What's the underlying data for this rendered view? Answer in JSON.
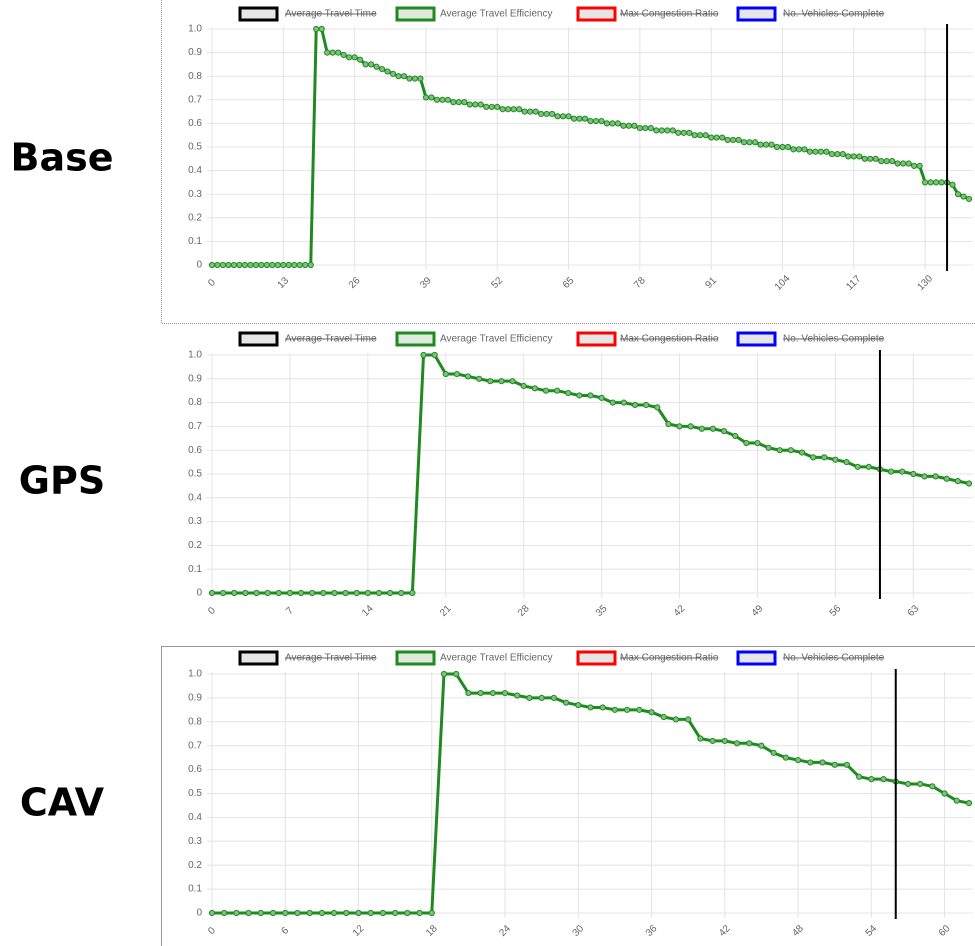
{
  "chart_data": [
    {
      "type": "line",
      "title": "Base",
      "series": [
        {
          "name": "Average Travel Time",
          "color": "#000000",
          "hidden": true
        },
        {
          "name": "Average Travel Efficiency",
          "color": "#1f8a1f",
          "values": [
            0,
            0,
            0,
            0,
            0,
            0,
            0,
            0,
            0,
            0,
            0,
            0,
            0,
            0,
            0,
            0,
            0,
            0,
            0,
            1,
            1,
            0.9,
            0.9,
            0.9,
            0.89,
            0.88,
            0.88,
            0.87,
            0.85,
            0.85,
            0.84,
            0.83,
            0.82,
            0.81,
            0.8,
            0.8,
            0.79,
            0.79,
            0.79,
            0.71,
            0.71,
            0.7,
            0.7,
            0.7,
            0.69,
            0.69,
            0.69,
            0.68,
            0.68,
            0.68,
            0.67,
            0.67,
            0.67,
            0.66,
            0.66,
            0.66,
            0.66,
            0.65,
            0.65,
            0.65,
            0.64,
            0.64,
            0.64,
            0.63,
            0.63,
            0.63,
            0.62,
            0.62,
            0.62,
            0.61,
            0.61,
            0.61,
            0.6,
            0.6,
            0.6,
            0.59,
            0.59,
            0.59,
            0.58,
            0.58,
            0.58,
            0.57,
            0.57,
            0.57,
            0.57,
            0.56,
            0.56,
            0.56,
            0.55,
            0.55,
            0.55,
            0.54,
            0.54,
            0.54,
            0.53,
            0.53,
            0.53,
            0.52,
            0.52,
            0.52,
            0.51,
            0.51,
            0.51,
            0.5,
            0.5,
            0.5,
            0.49,
            0.49,
            0.49,
            0.48,
            0.48,
            0.48,
            0.48,
            0.47,
            0.47,
            0.47,
            0.46,
            0.46,
            0.46,
            0.45,
            0.45,
            0.45,
            0.44,
            0.44,
            0.44,
            0.43,
            0.43,
            0.43,
            0.42,
            0.42,
            0.35,
            0.35,
            0.35,
            0.35,
            0.35,
            0.34,
            0.3,
            0.29,
            0.28
          ]
        },
        {
          "name": "Max Congestion Ratio",
          "color": "#ff0000",
          "hidden": true
        },
        {
          "name": "No. Vehicles Complete",
          "color": "#0000ff",
          "hidden": true
        }
      ],
      "xlim": [
        0,
        138
      ],
      "xticks": [
        0,
        13,
        26,
        39,
        52,
        65,
        78,
        91,
        104,
        117,
        130
      ],
      "ylim": [
        0,
        1
      ],
      "yticks": [
        0,
        0.1,
        0.2,
        0.3,
        0.4,
        0.5,
        0.6,
        0.7,
        0.8,
        0.9,
        {
          "value": 1,
          "label": "1.0"
        }
      ],
      "vline": 134,
      "grid": true
    },
    {
      "type": "line",
      "title": "GPS",
      "series": [
        {
          "name": "Average Travel Time",
          "color": "#000000",
          "hidden": true
        },
        {
          "name": "Average Travel Efficiency",
          "color": "#1f8a1f",
          "values": [
            0,
            0,
            0,
            0,
            0,
            0,
            0,
            0,
            0,
            0,
            0,
            0,
            0,
            0,
            0,
            0,
            0,
            0,
            0,
            1,
            1,
            0.92,
            0.92,
            0.91,
            0.9,
            0.89,
            0.89,
            0.89,
            0.87,
            0.86,
            0.85,
            0.85,
            0.84,
            0.83,
            0.83,
            0.82,
            0.8,
            0.8,
            0.79,
            0.79,
            0.78,
            0.71,
            0.7,
            0.7,
            0.69,
            0.69,
            0.68,
            0.66,
            0.63,
            0.63,
            0.61,
            0.6,
            0.6,
            0.59,
            0.57,
            0.57,
            0.56,
            0.55,
            0.53,
            0.53,
            0.52,
            0.51,
            0.51,
            0.5,
            0.49,
            0.49,
            0.48,
            0.47,
            0.46
          ]
        },
        {
          "name": "Max Congestion Ratio",
          "color": "#ff0000",
          "hidden": true
        },
        {
          "name": "No. Vehicles Complete",
          "color": "#0000ff",
          "hidden": true
        }
      ],
      "xlim": [
        0,
        68
      ],
      "xticks": [
        0,
        7,
        14,
        21,
        28,
        35,
        42,
        49,
        56,
        63
      ],
      "ylim": [
        0,
        1
      ],
      "yticks": [
        0,
        0.1,
        0.2,
        0.3,
        0.4,
        0.5,
        0.6,
        0.7,
        0.8,
        0.9,
        {
          "value": 1,
          "label": "1.0"
        }
      ],
      "vline": 60,
      "grid": true
    },
    {
      "type": "line",
      "title": "CAV",
      "series": [
        {
          "name": "Average Travel Time",
          "color": "#000000",
          "hidden": true
        },
        {
          "name": "Average Travel Efficiency",
          "color": "#1f8a1f",
          "values": [
            0,
            0,
            0,
            0,
            0,
            0,
            0,
            0,
            0,
            0,
            0,
            0,
            0,
            0,
            0,
            0,
            0,
            0,
            0,
            1,
            1,
            0.92,
            0.92,
            0.92,
            0.92,
            0.91,
            0.9,
            0.9,
            0.9,
            0.88,
            0.87,
            0.86,
            0.86,
            0.85,
            0.85,
            0.85,
            0.84,
            0.82,
            0.81,
            0.81,
            0.73,
            0.72,
            0.72,
            0.71,
            0.71,
            0.7,
            0.67,
            0.65,
            0.64,
            0.63,
            0.63,
            0.62,
            0.62,
            0.57,
            0.56,
            0.56,
            0.55,
            0.54,
            0.54,
            0.53,
            0.5,
            0.47,
            0.46
          ]
        },
        {
          "name": "Max Congestion Ratio",
          "color": "#ff0000",
          "hidden": true
        },
        {
          "name": "No. Vehicles Complete",
          "color": "#0000ff",
          "hidden": true
        }
      ],
      "xlim": [
        0,
        62
      ],
      "xticks": [
        0,
        6,
        12,
        18,
        24,
        30,
        36,
        42,
        48,
        54,
        60
      ],
      "ylim": [
        0,
        1
      ],
      "yticks": [
        0,
        0.1,
        0.2,
        0.3,
        0.4,
        0.5,
        0.6,
        0.7,
        0.8,
        0.9,
        {
          "value": 1,
          "label": "1.0"
        }
      ],
      "vline": 56,
      "grid": true
    }
  ]
}
